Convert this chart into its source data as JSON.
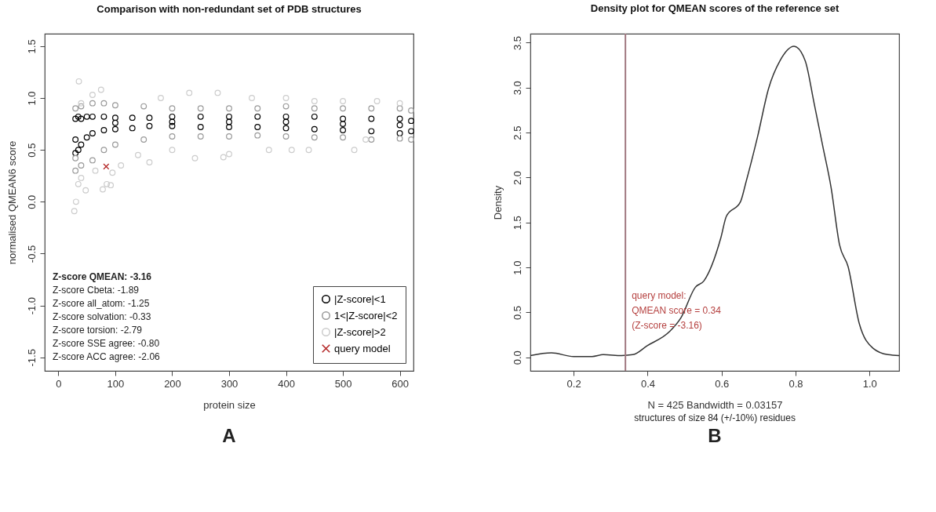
{
  "chart_data": [
    {
      "type": "scatter",
      "title": "Comparison with non-redundant set of PDB structures",
      "xlabel": "protein size",
      "ylabel": "normalised QMEAN6 score",
      "xlim": [
        -24,
        624
      ],
      "ylim": [
        -1.63,
        1.62
      ],
      "xticks": [
        0,
        100,
        200,
        300,
        400,
        500,
        600
      ],
      "yticks": [
        {
          "value": -1.5,
          "label": "-1.5"
        },
        {
          "value": -1,
          "label": "-1.0"
        },
        {
          "value": -0.5,
          "label": "-0.5"
        },
        {
          "value": 0,
          "label": "0.0"
        },
        {
          "value": 0.5,
          "label": "0.5"
        },
        {
          "value": 1,
          "label": "1.0"
        },
        {
          "value": 1.5,
          "label": "1.5"
        }
      ],
      "grid": false,
      "legend": "bottom right",
      "marker": "circle",
      "series": [
        {
          "name": "|Z-score|<1",
          "color": "#000000",
          "x": [
            30,
            30,
            30,
            35,
            35,
            40,
            40,
            50,
            50,
            60,
            60,
            80,
            80,
            100,
            100,
            130,
            130,
            160,
            160,
            200,
            200,
            250,
            250,
            300,
            300,
            350,
            350,
            400,
            400,
            450,
            450,
            500,
            500,
            550,
            550,
            600,
            600,
            620,
            620,
            100,
            200,
            300,
            400,
            500,
            600
          ],
          "values": [
            0.47,
            0.6,
            0.8,
            0.5,
            0.82,
            0.55,
            0.8,
            0.62,
            0.82,
            0.66,
            0.82,
            0.69,
            0.82,
            0.7,
            0.81,
            0.71,
            0.81,
            0.73,
            0.81,
            0.73,
            0.82,
            0.72,
            0.82,
            0.72,
            0.82,
            0.72,
            0.82,
            0.71,
            0.82,
            0.7,
            0.82,
            0.69,
            0.8,
            0.68,
            0.8,
            0.66,
            0.8,
            0.68,
            0.78,
            0.76,
            0.77,
            0.77,
            0.77,
            0.75,
            0.74
          ]
        },
        {
          "name": "1<|Z-score|<2",
          "color": "#999999",
          "x": [
            30,
            30,
            30,
            40,
            40,
            60,
            60,
            80,
            80,
            100,
            100,
            150,
            150,
            200,
            200,
            250,
            250,
            300,
            300,
            350,
            350,
            400,
            400,
            450,
            450,
            500,
            500,
            550,
            550,
            600,
            600,
            620,
            620
          ],
          "values": [
            0.3,
            0.42,
            0.9,
            0.35,
            0.92,
            0.4,
            0.95,
            0.5,
            0.95,
            0.55,
            0.93,
            0.6,
            0.92,
            0.63,
            0.9,
            0.63,
            0.9,
            0.63,
            0.9,
            0.64,
            0.9,
            0.63,
            0.92,
            0.62,
            0.9,
            0.62,
            0.9,
            0.6,
            0.9,
            0.61,
            0.9,
            0.6,
            0.88
          ]
        },
        {
          "name": "|Z-score|>2",
          "color": "#cccccc",
          "x": [
            28,
            31,
            35,
            40,
            48,
            78,
            85,
            95,
            92,
            36,
            75,
            40,
            60,
            110,
            160,
            180,
            230,
            280,
            240,
            290,
            300,
            370,
            410,
            440,
            520,
            540,
            340,
            400,
            450,
            500,
            560,
            600,
            200,
            140,
            65
          ],
          "values": [
            -0.09,
            0.0,
            0.17,
            0.23,
            0.11,
            0.12,
            0.17,
            0.28,
            0.16,
            1.16,
            1.08,
            0.95,
            1.03,
            0.35,
            0.38,
            1.0,
            1.05,
            1.05,
            0.42,
            0.43,
            0.46,
            0.5,
            0.5,
            0.5,
            0.5,
            0.6,
            1.0,
            1.0,
            0.97,
            0.97,
            0.97,
            0.95,
            0.5,
            0.45,
            0.3
          ]
        },
        {
          "name": "query model",
          "color": "#b22222",
          "marker": "cross",
          "x": [
            84
          ],
          "values": [
            0.34
          ]
        }
      ],
      "annotations": [
        "Z-score QMEAN: -3.16",
        "Z-score Cbeta: -1.89",
        "Z-score all_atom: -1.25",
        "Z-score solvation: -0.33",
        "Z-score torsion: -2.79",
        "Z-score SSE agree: -0.80",
        "Z-score ACC agree: -2.06",
        "A"
      ]
    },
    {
      "type": "line",
      "title": "Density plot for QMEAN scores of the reference set",
      "xlabel": "N = 425   Bandwidth = 0.03157",
      "ylabel": "Density",
      "xlim": [
        0.083,
        1.08
      ],
      "ylim": [
        -0.15,
        3.6
      ],
      "xticks": [
        0.2,
        0.4,
        0.6,
        0.8,
        {
          "value": 1,
          "label": "1.0"
        }
      ],
      "yticks": [
        {
          "value": 0,
          "label": "0.0"
        },
        0.5,
        {
          "value": 1,
          "label": "1.0"
        },
        1.5,
        {
          "value": 2,
          "label": "2.0"
        },
        2.5,
        {
          "value": 3,
          "label": "3.0"
        },
        3.5
      ],
      "grid": false,
      "legend": false,
      "line_style": "solid",
      "series": [
        {
          "color": "#333333",
          "x": [
            0.083,
            0.14,
            0.2,
            0.25,
            0.28,
            0.33,
            0.36,
            0.399,
            0.46,
            0.49,
            0.529,
            0.552,
            0.598,
            0.613,
            0.651,
            0.666,
            0.697,
            0.727,
            0.758,
            0.796,
            0.826,
            0.85,
            0.873,
            0.896,
            0.919,
            0.942,
            0.972,
            1.01,
            1.05,
            1.08
          ],
          "values": [
            0.02,
            0.05,
            0.01,
            0.01,
            0.03,
            0.02,
            0.03,
            0.13,
            0.29,
            0.44,
            0.78,
            0.85,
            1.33,
            1.57,
            1.73,
            1.95,
            2.45,
            2.99,
            3.3,
            3.46,
            3.3,
            2.83,
            2.36,
            1.89,
            1.25,
            1.01,
            0.38,
            0.1,
            0.03,
            0.02
          ]
        }
      ],
      "ref_lines": [
        {
          "axis": "x",
          "value": 0.34,
          "label": "query model:\nQMEAN score = 0.34\n(Z-score = -3.16)",
          "color": "#a07880"
        }
      ],
      "annotations": [
        "structures of size 84 (+/-10%) residues",
        "B"
      ]
    }
  ]
}
